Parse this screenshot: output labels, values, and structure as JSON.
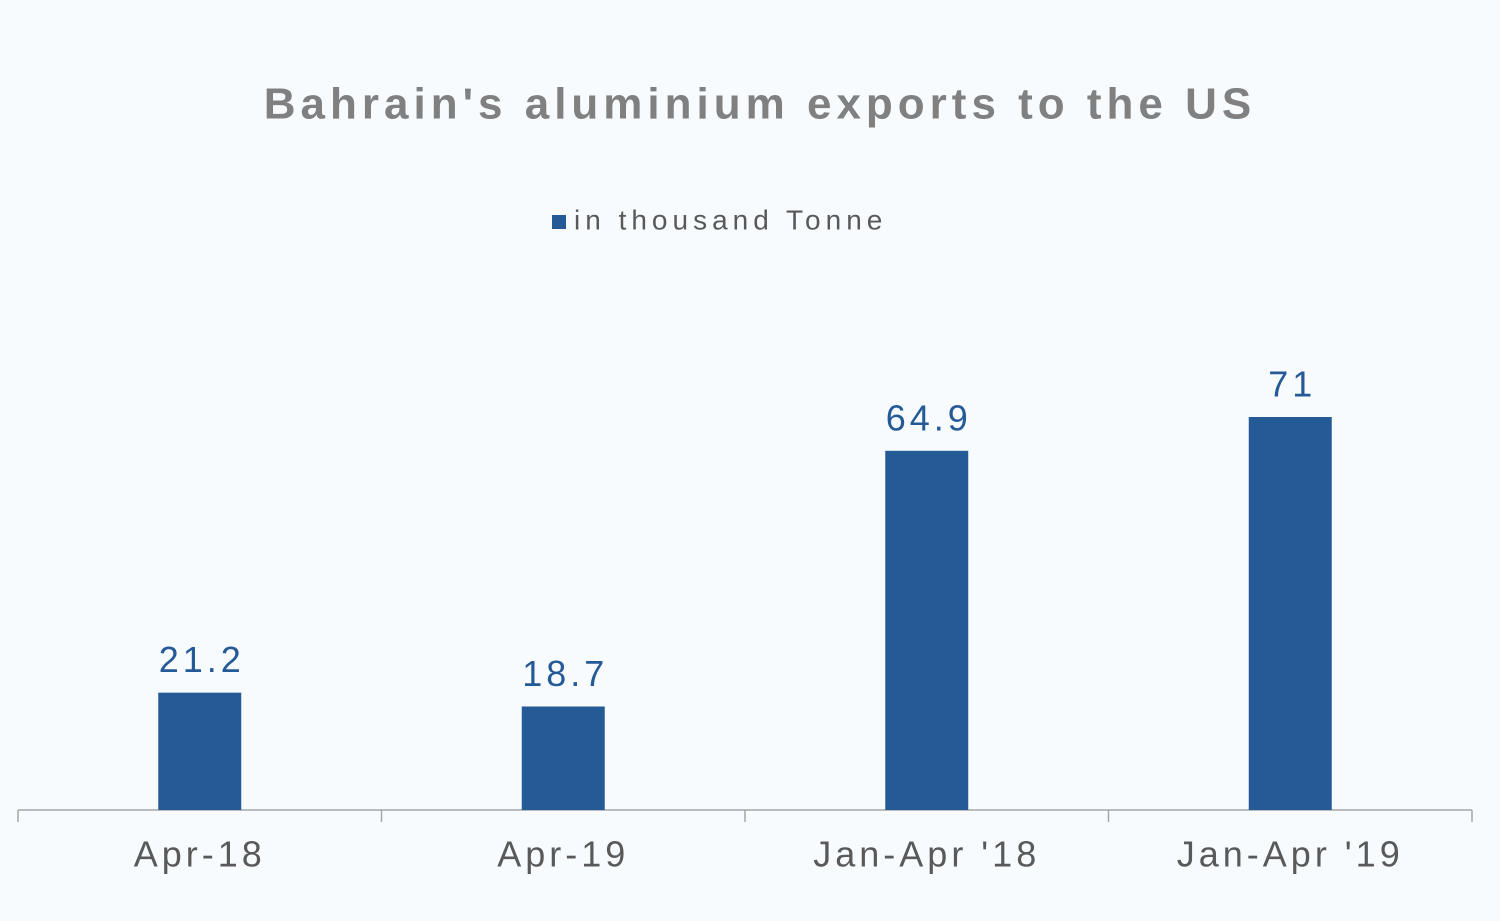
{
  "chart_data": {
    "type": "bar",
    "title": "Bahrain's aluminium exports to the US",
    "categories": [
      "Apr-18",
      "Apr-19",
      "Jan-Apr '18",
      "Jan-Apr '19"
    ],
    "series": [
      {
        "name": "in thousand Tonne",
        "color": "#245a96",
        "values": [
          21.2,
          18.7,
          64.9,
          71
        ]
      }
    ]
  }
}
